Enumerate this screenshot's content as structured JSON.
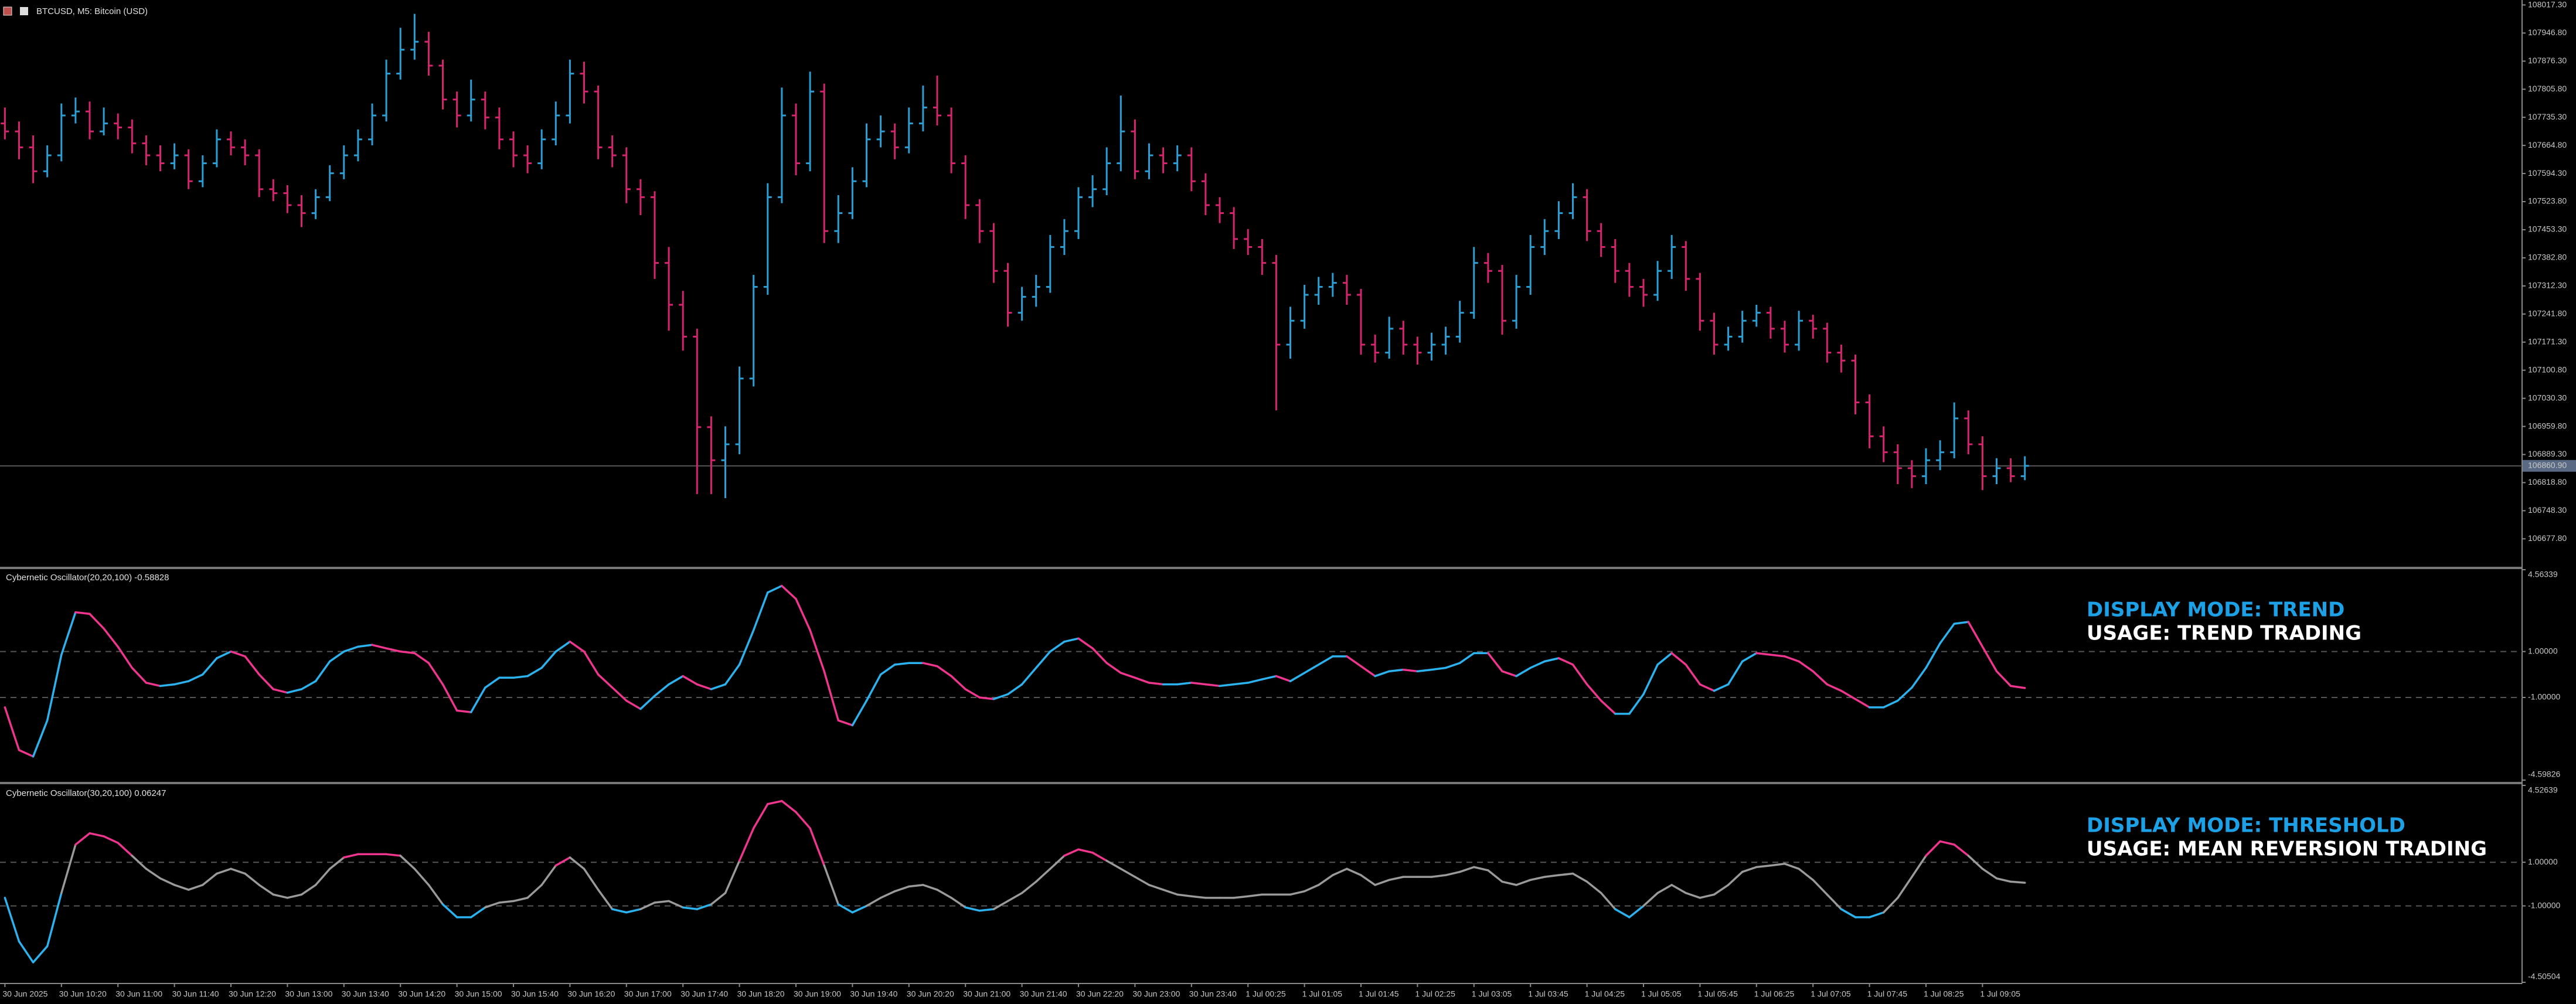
{
  "chart_data": [
    {
      "type": "ohlc",
      "title": "BTCUSD, M5:  Bitcoin (USD)",
      "open": [
        107720,
        107700,
        107660,
        107600,
        107640,
        107740,
        107750,
        107700,
        107720,
        107710,
        107670,
        107640,
        107620,
        107640,
        107575,
        107620,
        107680,
        107660,
        107640,
        107555,
        107545,
        107515,
        107495,
        107535,
        107595,
        107640,
        107680,
        107740,
        107845,
        107905,
        107925,
        107865,
        107780,
        107740,
        107780,
        107735,
        107680,
        107640,
        107620,
        107680,
        107740,
        107845,
        107800,
        107660,
        107640,
        107555,
        107535,
        107370,
        107265,
        107185,
        106958,
        106875,
        106915,
        107080,
        107310,
        107535,
        107740,
        107620,
        107800,
        107450,
        107495,
        107575,
        107680,
        107700,
        107660,
        107720,
        107760,
        107740,
        107620,
        107515,
        107450,
        107350,
        107245,
        107285,
        107310,
        107410,
        107450,
        107535,
        107555,
        107620,
        107700,
        107600,
        107640,
        107620,
        107640,
        107575,
        107515,
        107495,
        107430,
        107410,
        107370,
        107165,
        107225,
        107290,
        107310,
        107320,
        107290,
        107165,
        107145,
        107205,
        107165,
        107145,
        107165,
        107185,
        107245,
        107370,
        107350,
        107225,
        107310,
        107410,
        107450,
        107495,
        107535,
        107450,
        107410,
        107350,
        107310,
        107290,
        107350,
        107410,
        107330,
        107225,
        107165,
        107185,
        107225,
        107245,
        107205,
        107165,
        107225,
        107205,
        107145,
        107125,
        107020,
        106935,
        106895,
        106855,
        106835,
        106875,
        106895,
        106980,
        106915,
        106835,
        106855,
        106835
      ],
      "high": [
        107760,
        107725,
        107690,
        107665,
        107770,
        107785,
        107775,
        107760,
        107745,
        107730,
        107690,
        107665,
        107670,
        107655,
        107640,
        107705,
        107700,
        107680,
        107655,
        107580,
        107565,
        107540,
        107555,
        107615,
        107665,
        107705,
        107770,
        107880,
        107960,
        107995,
        107950,
        107880,
        107800,
        107830,
        107800,
        107760,
        107700,
        107665,
        107705,
        107775,
        107880,
        107875,
        107815,
        107690,
        107660,
        107580,
        107550,
        107410,
        107300,
        107205,
        106985,
        106960,
        107110,
        107340,
        107570,
        107810,
        107770,
        107850,
        107820,
        107540,
        107610,
        107720,
        107740,
        107720,
        107760,
        107815,
        107840,
        107760,
        107640,
        107530,
        107470,
        107370,
        107310,
        107340,
        107440,
        107480,
        107560,
        107590,
        107660,
        107790,
        107730,
        107670,
        107660,
        107665,
        107660,
        107595,
        107535,
        107510,
        107455,
        107430,
        107390,
        107260,
        107315,
        107335,
        107345,
        107340,
        107305,
        107190,
        107235,
        107225,
        107185,
        107195,
        107210,
        107275,
        107410,
        107395,
        107365,
        107340,
        107440,
        107480,
        107525,
        107570,
        107555,
        107470,
        107430,
        107370,
        107330,
        107375,
        107440,
        107425,
        107345,
        107245,
        107210,
        107250,
        107265,
        107260,
        107225,
        107250,
        107240,
        107220,
        107165,
        107140,
        107040,
        106960,
        106915,
        106875,
        106905,
        106925,
        107020,
        107000,
        106935,
        106880,
        106880,
        106885
      ],
      "low": [
        107680,
        107630,
        107570,
        107585,
        107625,
        107720,
        107680,
        107690,
        107680,
        107645,
        107615,
        107600,
        107605,
        107555,
        107560,
        107610,
        107640,
        107615,
        107535,
        107525,
        107495,
        107460,
        107480,
        107525,
        107580,
        107625,
        107665,
        107725,
        107830,
        107880,
        107840,
        107755,
        107710,
        107725,
        107705,
        107655,
        107610,
        107595,
        107605,
        107665,
        107720,
        107770,
        107630,
        107610,
        107520,
        107490,
        107330,
        107200,
        107150,
        106790,
        106790,
        106780,
        106890,
        107060,
        107290,
        107520,
        107590,
        107600,
        107420,
        107420,
        107480,
        107560,
        107660,
        107630,
        107645,
        107700,
        107715,
        107595,
        107480,
        107420,
        107320,
        107210,
        107225,
        107260,
        107295,
        107390,
        107430,
        107510,
        107540,
        107600,
        107580,
        107580,
        107595,
        107600,
        107550,
        107490,
        107470,
        107405,
        107390,
        107340,
        107000,
        107130,
        107205,
        107265,
        107285,
        107265,
        107140,
        107120,
        107130,
        107140,
        107115,
        107125,
        107140,
        107170,
        107230,
        107320,
        107190,
        107205,
        107290,
        107390,
        107430,
        107480,
        107425,
        107385,
        107320,
        107285,
        107260,
        107275,
        107330,
        107300,
        107200,
        107140,
        107150,
        107170,
        107210,
        107180,
        107145,
        107150,
        107180,
        107120,
        107095,
        106990,
        106905,
        106870,
        106815,
        106805,
        106815,
        106850,
        106880,
        106890,
        106800,
        106815,
        106820,
        106825
      ],
      "close": [
        107700,
        107660,
        107600,
        107640,
        107740,
        107750,
        107700,
        107720,
        107710,
        107670,
        107640,
        107620,
        107640,
        107575,
        107620,
        107680,
        107660,
        107640,
        107555,
        107545,
        107515,
        107495,
        107535,
        107595,
        107640,
        107680,
        107740,
        107845,
        107905,
        107925,
        107865,
        107780,
        107740,
        107780,
        107735,
        107680,
        107640,
        107620,
        107680,
        107740,
        107845,
        107800,
        107660,
        107640,
        107555,
        107535,
        107370,
        107265,
        107185,
        106958,
        106875,
        106915,
        107080,
        107310,
        107535,
        107740,
        107620,
        107800,
        107450,
        107495,
        107575,
        107680,
        107700,
        107660,
        107720,
        107760,
        107740,
        107620,
        107515,
        107450,
        107350,
        107245,
        107285,
        107310,
        107410,
        107450,
        107535,
        107555,
        107620,
        107700,
        107600,
        107640,
        107620,
        107640,
        107575,
        107515,
        107495,
        107430,
        107410,
        107370,
        107165,
        107225,
        107290,
        107310,
        107320,
        107290,
        107165,
        107145,
        107205,
        107165,
        107145,
        107165,
        107185,
        107245,
        107370,
        107350,
        107225,
        107310,
        107410,
        107450,
        107495,
        107535,
        107450,
        107410,
        107350,
        107310,
        107290,
        107350,
        107410,
        107330,
        107225,
        107165,
        107185,
        107225,
        107245,
        107205,
        107165,
        107225,
        107205,
        107145,
        107125,
        107020,
        106935,
        106895,
        106855,
        106835,
        106875,
        106895,
        106980,
        106915,
        106835,
        106855,
        106835,
        106860.9
      ],
      "up_color": "#2a9fd6",
      "down_color": "#d6246e",
      "ylim": [
        106607.7,
        108029.7
      ],
      "yticks": [
        {
          "value": 108017.3,
          "label": "108017.30"
        },
        {
          "value": 107946.8,
          "label": "107946.80"
        },
        {
          "value": 107876.3,
          "label": "107876.30"
        },
        {
          "value": 107805.8,
          "label": "107805.80"
        },
        {
          "value": 107735.3,
          "label": "107735.30"
        },
        {
          "value": 107664.8,
          "label": "107664.80"
        },
        {
          "value": 107594.3,
          "label": "107594.30"
        },
        {
          "value": 107523.8,
          "label": "107523.80"
        },
        {
          "value": 107453.3,
          "label": "107453.30"
        },
        {
          "value": 107382.8,
          "label": "107382.80"
        },
        {
          "value": 107312.3,
          "label": "107312.30"
        },
        {
          "value": 107241.8,
          "label": "107241.80"
        },
        {
          "value": 107171.3,
          "label": "107171.30"
        },
        {
          "value": 107100.8,
          "label": "107100.80"
        },
        {
          "value": 107030.3,
          "label": "107030.30"
        },
        {
          "value": 106959.8,
          "label": "106959.80"
        },
        {
          "value": 106889.3,
          "label": "106889.30"
        },
        {
          "value": 106818.8,
          "label": "106818.80"
        },
        {
          "value": 106748.3,
          "label": "106748.30"
        },
        {
          "value": 106677.8,
          "label": "106677.80"
        }
      ],
      "current_price": {
        "value": 106860.9,
        "label": "106860.90"
      },
      "xticks": [
        {
          "value": 0,
          "label": "30 Jun 2025"
        },
        {
          "value": 4,
          "label": "30 Jun 10:20"
        },
        {
          "value": 8,
          "label": "30 Jun 11:00"
        },
        {
          "value": 12,
          "label": "30 Jun 11:40"
        },
        {
          "value": 16,
          "label": "30 Jun 12:20"
        },
        {
          "value": 20,
          "label": "30 Jun 13:00"
        },
        {
          "value": 24,
          "label": "30 Jun 13:40"
        },
        {
          "value": 28,
          "label": "30 Jun 14:20"
        },
        {
          "value": 32,
          "label": "30 Jun 15:00"
        },
        {
          "value": 36,
          "label": "30 Jun 15:40"
        },
        {
          "value": 40,
          "label": "30 Jun 16:20"
        },
        {
          "value": 44,
          "label": "30 Jun 17:00"
        },
        {
          "value": 48,
          "label": "30 Jun 17:40"
        },
        {
          "value": 52,
          "label": "30 Jun 18:20"
        },
        {
          "value": 56,
          "label": "30 Jun 19:00"
        },
        {
          "value": 60,
          "label": "30 Jun 19:40"
        },
        {
          "value": 64,
          "label": "30 Jun 20:20"
        },
        {
          "value": 68,
          "label": "30 Jun 21:00"
        },
        {
          "value": 72,
          "label": "30 Jun 21:40"
        },
        {
          "value": 76,
          "label": "30 Jun 22:20"
        },
        {
          "value": 80,
          "label": "30 Jun 23:00"
        },
        {
          "value": 84,
          "label": "30 Jun 23:40"
        },
        {
          "value": 88,
          "label": "1 Jul 00:25"
        },
        {
          "value": 92,
          "label": "1 Jul 01:05"
        },
        {
          "value": 96,
          "label": "1 Jul 01:45"
        },
        {
          "value": 100,
          "label": "1 Jul 02:25"
        },
        {
          "value": 104,
          "label": "1 Jul 03:05"
        },
        {
          "value": 108,
          "label": "1 Jul 03:45"
        },
        {
          "value": 112,
          "label": "1 Jul 04:25"
        },
        {
          "value": 116,
          "label": "1 Jul 05:05"
        },
        {
          "value": 120,
          "label": "1 Jul 05:45"
        },
        {
          "value": 124,
          "label": "1 Jul 06:25"
        },
        {
          "value": 128,
          "label": "1 Jul 07:05"
        },
        {
          "value": 132,
          "label": "1 Jul 07:45"
        },
        {
          "value": 136,
          "label": "1 Jul 08:25"
        },
        {
          "value": 140,
          "label": "1 Jul 09:05"
        }
      ]
    },
    {
      "type": "oscillator",
      "title": "Cybernetic Oscillator(20,20,100) -0.58828",
      "display_mode": "trend",
      "values": [
        -1.43,
        -3.29,
        -3.57,
        -2,
        0.86,
        2.71,
        2.64,
        2,
        1.21,
        0.29,
        -0.36,
        -0.5,
        -0.43,
        -0.29,
        0,
        0.71,
        1,
        0.79,
        0,
        -0.64,
        -0.79,
        -0.64,
        -0.29,
        0.57,
        1,
        1.21,
        1.29,
        1.14,
        1,
        0.93,
        0.5,
        -0.43,
        -1.57,
        -1.64,
        -0.57,
        -0.14,
        -0.14,
        -0.07,
        0.29,
        1,
        1.43,
        1,
        0,
        -0.57,
        -1.14,
        -1.5,
        -0.93,
        -0.43,
        -0.07,
        -0.43,
        -0.64,
        -0.43,
        0.43,
        1.93,
        3.57,
        3.86,
        3.29,
        1.93,
        0.14,
        -2,
        -2.21,
        -1.14,
        0,
        0.43,
        0.5,
        0.5,
        0.36,
        -0.07,
        -0.64,
        -1,
        -1.07,
        -0.86,
        -0.43,
        0.29,
        1,
        1.43,
        1.57,
        1.14,
        0.5,
        0.07,
        -0.14,
        -0.36,
        -0.43,
        -0.43,
        -0.36,
        -0.43,
        -0.5,
        -0.43,
        -0.36,
        -0.21,
        -0.07,
        -0.29,
        0.07,
        0.43,
        0.79,
        0.79,
        0.36,
        -0.07,
        0.14,
        0.21,
        0.14,
        0.21,
        0.29,
        0.5,
        0.93,
        0.93,
        0.14,
        -0.07,
        0.29,
        0.57,
        0.71,
        0.43,
        -0.43,
        -1.14,
        -1.71,
        -1.71,
        -0.86,
        0.43,
        0.93,
        0.43,
        -0.43,
        -0.71,
        -0.43,
        0.57,
        0.93,
        0.86,
        0.79,
        0.57,
        0.14,
        -0.43,
        -0.71,
        -1.07,
        -1.43,
        -1.43,
        -1.14,
        -0.57,
        0.29,
        1.36,
        2.21,
        2.29,
        1.21,
        0.14,
        -0.5,
        -0.58828
      ],
      "rising_color": "#2bb3f0",
      "falling_color": "#f0358e",
      "ylim": [
        -4.59826,
        4.56339
      ],
      "yticks": [
        4.56339,
        {
          "value": 1,
          "label": "1.00000"
        },
        {
          "value": -1,
          "label": "-1.00000"
        },
        -4.59826
      ],
      "grid": "dashed",
      "annotations": [
        "DISPLAY MODE: TREND",
        "USAGE: TREND TRADING"
      ]
    },
    {
      "type": "oscillator",
      "title": "Cybernetic Oscillator(30,20,100) 0.06247",
      "display_mode": "threshold",
      "values": [
        -0.63,
        -2.63,
        -3.59,
        -2.85,
        -0.41,
        1.81,
        2.33,
        2.19,
        1.89,
        1.3,
        0.7,
        0.26,
        -0.04,
        -0.26,
        -0.04,
        0.48,
        0.7,
        0.48,
        -0.04,
        -0.48,
        -0.63,
        -0.48,
        -0.04,
        0.7,
        1.22,
        1.37,
        1.37,
        1.37,
        1.3,
        0.7,
        -0.04,
        -0.93,
        -1.52,
        -1.52,
        -1.07,
        -0.85,
        -0.78,
        -0.63,
        -0.04,
        0.85,
        1.22,
        0.7,
        -0.26,
        -1.15,
        -1.3,
        -1.15,
        -0.85,
        -0.78,
        -1.07,
        -1.15,
        -0.93,
        -0.41,
        1.07,
        2.56,
        3.67,
        3.81,
        3.3,
        2.56,
        0.85,
        -0.93,
        -1.3,
        -1,
        -0.63,
        -0.33,
        -0.11,
        -0.04,
        -0.26,
        -0.63,
        -1.07,
        -1.22,
        -1.15,
        -0.78,
        -0.41,
        0.11,
        0.7,
        1.3,
        1.59,
        1.44,
        1.07,
        0.7,
        0.33,
        -0.04,
        -0.26,
        -0.48,
        -0.56,
        -0.63,
        -0.63,
        -0.63,
        -0.56,
        -0.48,
        -0.48,
        -0.48,
        -0.33,
        -0.04,
        0.41,
        0.7,
        0.41,
        -0.04,
        0.19,
        0.33,
        0.33,
        0.33,
        0.41,
        0.56,
        0.78,
        0.63,
        0.11,
        -0.04,
        0.19,
        0.33,
        0.41,
        0.48,
        0.11,
        -0.41,
        -1.15,
        -1.52,
        -1,
        -0.41,
        -0.04,
        -0.41,
        -0.63,
        -0.48,
        -0.04,
        0.56,
        0.78,
        0.85,
        0.93,
        0.7,
        0.19,
        -0.48,
        -1.15,
        -1.52,
        -1.52,
        -1.3,
        -0.63,
        0.33,
        1.3,
        1.96,
        1.81,
        1.3,
        0.7,
        0.26,
        0.11,
        0.06247
      ],
      "thresholds": [
        -1,
        1
      ],
      "above_color": "#f0358e",
      "below_color": "#2bb3f0",
      "neutral_color": "#9a9a9a",
      "ylim": [
        -4.50504,
        4.52639
      ],
      "yticks": [
        4.52639,
        {
          "value": 1,
          "label": "1.00000"
        },
        {
          "value": -1,
          "label": "-1.00000"
        },
        -4.50504
      ],
      "grid": "dashed",
      "annotations": [
        "DISPLAY MODE: THRESHOLD",
        "USAGE: MEAN REVERSION TRADING"
      ]
    }
  ]
}
